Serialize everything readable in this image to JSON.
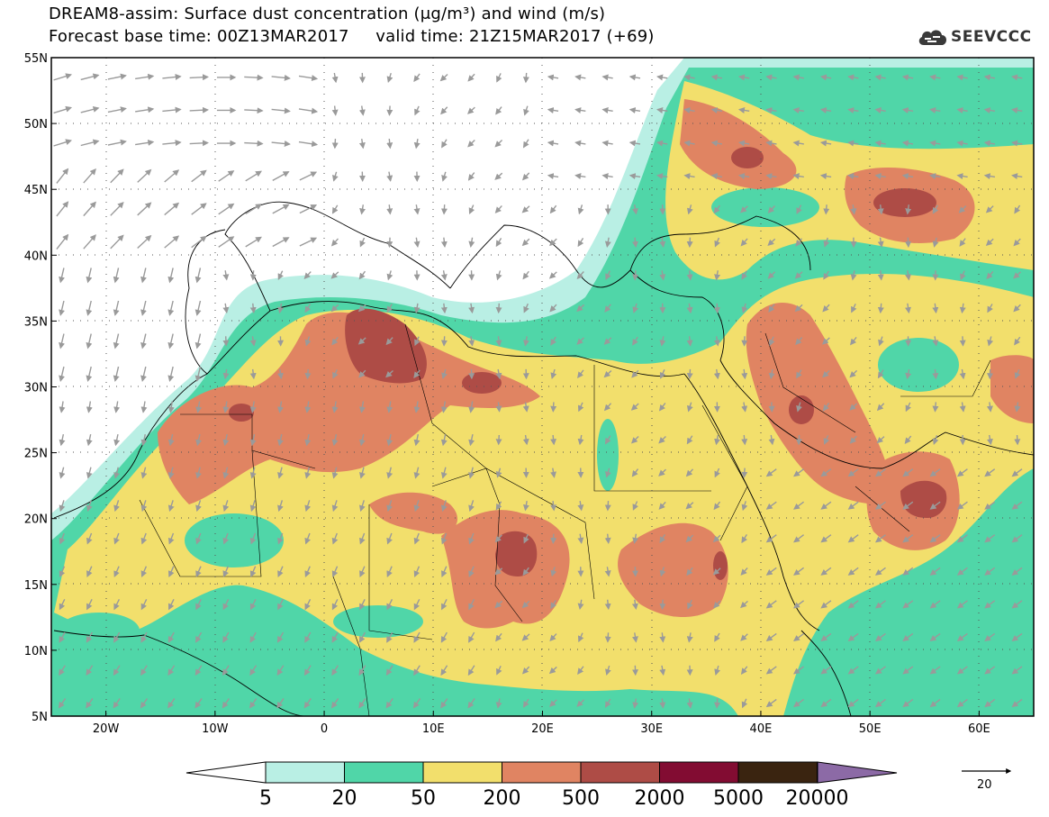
{
  "title": {
    "line1": "DREAM8-assim: Surface dust concentration (μg/m³) and wind (m/s)",
    "line2": "Forecast base time: 00Z13MAR2017     valid time: 21Z15MAR2017 (+69)"
  },
  "logo": {
    "text": "SEEVCCC",
    "icon": "cloud-logo-icon"
  },
  "map": {
    "lat_ticks": [
      "55N",
      "50N",
      "45N",
      "40N",
      "35N",
      "30N",
      "25N",
      "20N",
      "15N",
      "10N",
      "5N"
    ],
    "lon_ticks": [
      "20W",
      "10W",
      "0",
      "10E",
      "20E",
      "30E",
      "40E",
      "50E",
      "60E"
    ],
    "lon_range": [
      -25,
      65
    ],
    "lat_range": [
      5,
      55
    ]
  },
  "colorbar": {
    "labels": [
      "5",
      "20",
      "50",
      "200",
      "500",
      "2000",
      "5000",
      "20000"
    ],
    "colors": [
      "#b9efe4",
      "#50d6a8",
      "#f2df6c",
      "#e08462",
      "#ae4c46",
      "#820c32",
      "#3a2410",
      "#8c6aa6"
    ]
  },
  "wind_reference": {
    "label": "20"
  }
}
